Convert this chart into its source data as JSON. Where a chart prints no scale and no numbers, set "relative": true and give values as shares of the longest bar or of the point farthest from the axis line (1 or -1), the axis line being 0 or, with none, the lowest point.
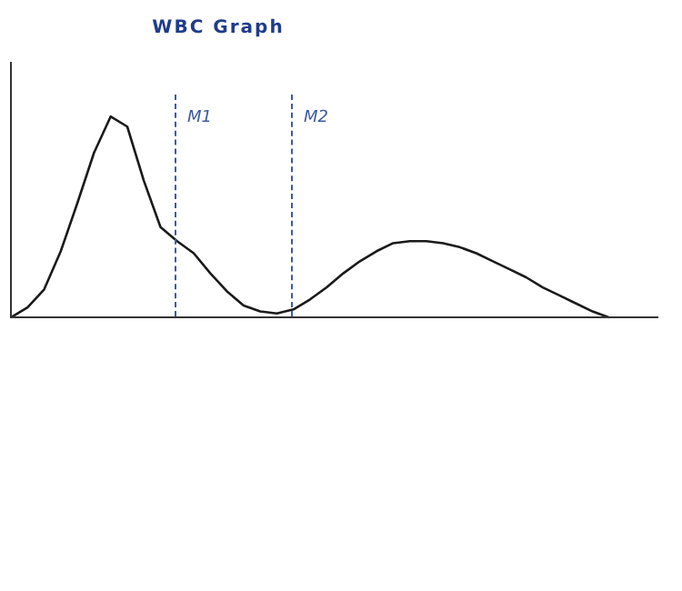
{
  "chart_data": {
    "type": "line",
    "title": "WBC Graph",
    "relative": true,
    "grid": false,
    "legend": false,
    "marker": "none",
    "line_style": "solid",
    "categories": [
      null,
      null,
      null,
      null,
      null,
      null,
      null,
      null,
      null,
      null,
      null,
      null,
      null,
      null,
      null,
      null,
      null,
      null,
      null,
      null,
      null,
      null,
      null,
      null,
      null,
      null,
      null,
      null,
      null,
      null,
      null,
      null,
      null,
      null,
      null,
      null,
      null
    ],
    "series": [
      {
        "color": "#1a1a1a",
        "values": [
          0,
          0.05,
          0.14,
          0.33,
          0.57,
          0.82,
          1,
          0.95,
          0.68,
          0.45,
          0.38,
          0.32,
          0.22,
          0.13,
          0.06,
          0.03,
          0.02,
          0.04,
          0.09,
          0.15,
          0.22,
          0.28,
          0.33,
          0.37,
          0.38,
          0.38,
          0.37,
          0.35,
          0.32,
          0.28,
          0.24,
          0.2,
          0.15,
          0.11,
          0.07,
          0.03,
          0
        ]
      }
    ],
    "annotations": [
      "M1",
      "M2"
    ]
  }
}
